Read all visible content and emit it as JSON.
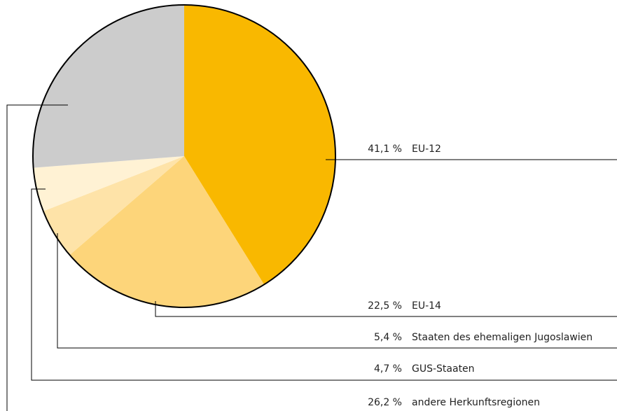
{
  "chart_data": {
    "type": "pie",
    "categories": [
      "EU-12",
      "EU-14",
      "Staaten des ehemaligen Jugoslawien",
      "GUS-Staaten",
      "andere Herkunftsregionen"
    ],
    "values": [
      41.1,
      22.5,
      5.4,
      4.7,
      26.2
    ],
    "value_labels": [
      "41,1 %",
      "22,5 %",
      "5,4 %",
      "4,7 %",
      "26,2 %"
    ],
    "colors": [
      "#f9b800",
      "#fdd57a",
      "#fee3a8",
      "#fff2d4",
      "#cccccc"
    ]
  }
}
